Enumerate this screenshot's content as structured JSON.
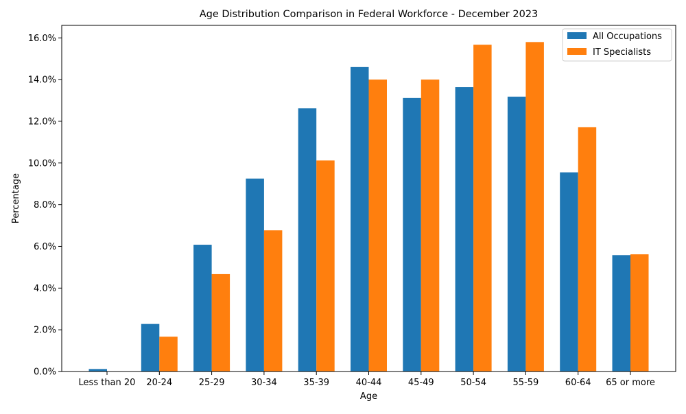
{
  "chart_data": {
    "type": "bar",
    "title": "Age Distribution Comparison in Federal Workforce - December 2023",
    "xlabel": "Age",
    "ylabel": "Percentage",
    "categories": [
      "Less than 20",
      "20-24",
      "25-29",
      "30-34",
      "35-39",
      "40-44",
      "45-49",
      "50-54",
      "55-59",
      "60-64",
      "65 or more"
    ],
    "series": [
      {
        "name": "All Occupations",
        "color": "#1f77b4",
        "values": [
          0.12,
          2.28,
          6.08,
          9.25,
          12.62,
          14.6,
          13.12,
          13.64,
          13.18,
          9.55,
          5.58
        ]
      },
      {
        "name": "IT Specialists",
        "color": "#ff7f0e",
        "values": [
          0.0,
          1.67,
          4.67,
          6.77,
          10.12,
          14.0,
          14.0,
          15.67,
          15.8,
          11.72,
          5.62
        ]
      }
    ],
    "ylim": [
      0,
      16.6
    ],
    "yticks": [
      0,
      2,
      4,
      6,
      8,
      10,
      12,
      14,
      16
    ],
    "ytick_labels": [
      "0.0%",
      "2.0%",
      "4.0%",
      "6.0%",
      "8.0%",
      "10.0%",
      "12.0%",
      "14.0%",
      "16.0%"
    ],
    "legend_position": "top-right",
    "grid": false
  }
}
